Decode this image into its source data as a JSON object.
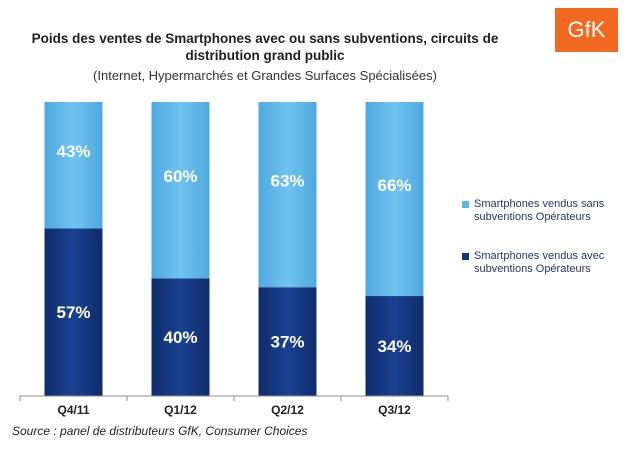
{
  "chart_data": {
    "type": "bar",
    "stacked": true,
    "title": "Poids des ventes de Smartphones avec ou sans subventions, circuits de distribution grand public",
    "subtitle": "(Internet, Hypermarchés et Grandes Surfaces Spécialisées)",
    "categories": [
      "Q4/11",
      "Q1/12",
      "Q2/12",
      "Q3/12"
    ],
    "series": [
      {
        "name": "Smartphones vendus avec subventions Opérateurs",
        "values": [
          57,
          40,
          37,
          34
        ],
        "labels": [
          "57%",
          "40%",
          "37%",
          "34%"
        ],
        "color": "#14377d"
      },
      {
        "name": "Smartphones vendus sans subventions Opérateurs",
        "values": [
          43,
          60,
          63,
          66
        ],
        "labels": [
          "43%",
          "60%",
          "63%",
          "66%"
        ],
        "color": "#5ab6e8"
      }
    ],
    "ylim": [
      0,
      100
    ],
    "legend_position": "right",
    "grid": false
  },
  "source": "Source : panel de distributeurs GfK, Consumer Choices",
  "logo_text": "GfK",
  "colors": {
    "dark": "#14377d",
    "light": "#5ab6e8"
  }
}
